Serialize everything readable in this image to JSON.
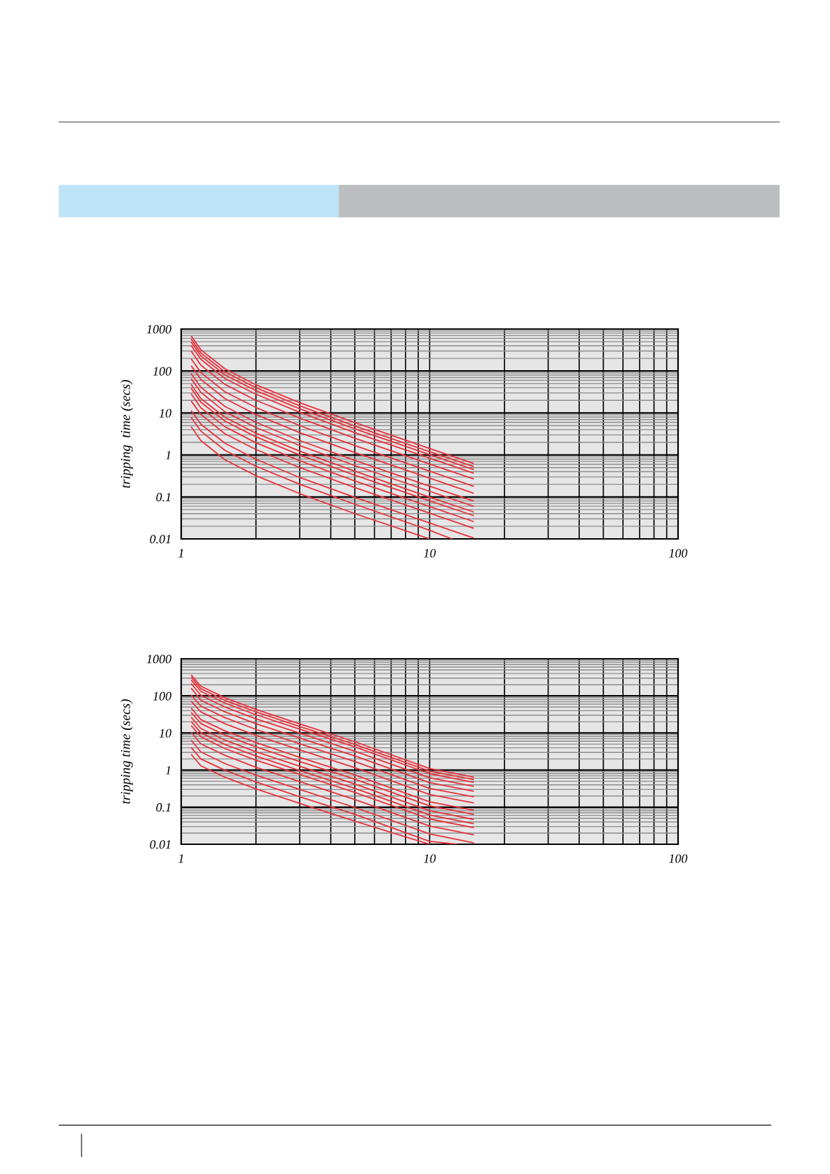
{
  "chart_data": [
    {
      "type": "line",
      "ylabel": "tripping  time (secs)",
      "log": "xy",
      "xlim": [
        1,
        100
      ],
      "ylim": [
        0.01,
        1000
      ],
      "xticks": [
        1,
        10,
        100
      ],
      "yticks": [
        0.01,
        0.1,
        1,
        10,
        100,
        1000
      ],
      "grid": true,
      "color": "#e8313a",
      "series": [
        {
          "x": [
            1.1,
            1.2,
            1.5,
            2,
            3,
            5,
            10,
            15
          ],
          "values": [
            670,
            320,
            113,
            47,
            17.6,
            5.9,
            1.42,
            0.63
          ]
        },
        {
          "x": [
            1.1,
            1.2,
            1.5,
            2,
            3,
            5,
            10,
            15
          ],
          "values": [
            565,
            270,
            95,
            40,
            14.8,
            4.9,
            1.2,
            0.53
          ]
        },
        {
          "x": [
            1.1,
            1.2,
            1.5,
            2,
            3,
            5,
            10,
            15
          ],
          "values": [
            480,
            230,
            81,
            34,
            12.6,
            4.2,
            1.02,
            0.45
          ]
        },
        {
          "x": [
            1.1,
            1.2,
            1.5,
            2,
            3,
            5,
            10,
            15
          ],
          "values": [
            395,
            189,
            66,
            28,
            10.4,
            3.4,
            0.84,
            0.37
          ]
        },
        {
          "x": [
            1.1,
            1.2,
            1.5,
            2,
            3,
            5,
            10,
            15
          ],
          "values": [
            290,
            138,
            48,
            20,
            7.6,
            2.5,
            0.61,
            0.27
          ]
        },
        {
          "x": [
            1.1,
            1.2,
            1.5,
            2,
            3,
            5,
            10,
            15
          ],
          "values": [
            192,
            92,
            32,
            13.5,
            5.0,
            1.67,
            0.41,
            0.18
          ]
        },
        {
          "x": [
            1.1,
            1.2,
            1.5,
            2,
            3,
            5,
            10,
            15
          ],
          "values": [
            131,
            63,
            22,
            9.2,
            3.4,
            1.14,
            0.28,
            0.123
          ]
        },
        {
          "x": [
            1.1,
            1.2,
            1.5,
            2,
            3,
            5,
            10,
            15
          ],
          "values": [
            85,
            41,
            14.3,
            6.0,
            2.2,
            0.74,
            0.18,
            0.08
          ]
        },
        {
          "x": [
            1.1,
            1.2,
            1.5,
            2,
            3,
            5,
            10,
            15
          ],
          "values": [
            64,
            31,
            10.7,
            4.5,
            1.68,
            0.56,
            0.136,
            0.06
          ]
        },
        {
          "x": [
            1.1,
            1.2,
            1.5,
            2,
            3,
            5,
            10,
            15
          ],
          "values": [
            47,
            22,
            7.9,
            3.3,
            1.23,
            0.41,
            0.099,
            0.044
          ]
        },
        {
          "x": [
            1.1,
            1.2,
            1.5,
            2,
            3,
            5,
            10,
            15
          ],
          "values": [
            38,
            18,
            6.4,
            2.7,
            1.0,
            0.33,
            0.081,
            0.036
          ]
        },
        {
          "x": [
            1.1,
            1.2,
            1.5,
            2,
            3,
            5,
            10,
            15
          ],
          "values": [
            28,
            13.3,
            4.7,
            1.95,
            0.73,
            0.24,
            0.059,
            0.026
          ]
        },
        {
          "x": [
            1.1,
            1.2,
            1.5,
            2,
            3,
            5,
            10,
            15
          ],
          "values": [
            19,
            9.2,
            3.2,
            1.35,
            0.5,
            0.167,
            0.041,
            0.018
          ]
        },
        {
          "x": [
            1.1,
            1.2,
            1.5,
            2,
            3,
            5,
            10,
            15
          ],
          "values": [
            11.2,
            5.4,
            1.9,
            0.79,
            0.29,
            0.098,
            0.024,
            0.0105
          ]
        },
        {
          "x": [
            1.1,
            1.2,
            1.5,
            2,
            3,
            5,
            10,
            12.3
          ],
          "values": [
            7.7,
            3.7,
            1.29,
            0.54,
            0.2,
            0.067,
            0.016,
            0.01
          ]
        },
        {
          "x": [
            1.1,
            1.2,
            1.5,
            2,
            3,
            5,
            10
          ],
          "values": [
            4.6,
            2.2,
            0.77,
            0.32,
            0.12,
            0.04,
            0.01
          ]
        }
      ]
    },
    {
      "type": "line",
      "ylabel": "tripping time (secs)",
      "log": "xy",
      "xlim": [
        1,
        100
      ],
      "ylim": [
        0.01,
        1000
      ],
      "xticks": [
        1,
        10,
        100
      ],
      "yticks": [
        0.01,
        0.1,
        1,
        10,
        100,
        1000
      ],
      "grid": true,
      "color": "#e8313a",
      "series": [
        {
          "x": [
            1.1,
            1.2,
            1.5,
            2,
            3,
            5,
            10,
            15
          ],
          "values": [
            360,
            183,
            89,
            43,
            17.6,
            5.8,
            1.1,
            0.65
          ]
        },
        {
          "x": [
            1.1,
            1.2,
            1.5,
            2,
            3,
            5,
            10,
            15
          ],
          "values": [
            311,
            156,
            76,
            37,
            15,
            4.9,
            0.94,
            0.555
          ]
        },
        {
          "x": [
            1.1,
            1.2,
            1.5,
            2,
            3,
            5,
            10,
            15
          ],
          "values": [
            263,
            132,
            64,
            31,
            12.7,
            4.2,
            0.8,
            0.47
          ]
        },
        {
          "x": [
            1.1,
            1.2,
            1.5,
            2,
            3,
            5,
            10,
            15
          ],
          "values": [
            211,
            103,
            50,
            24,
            9.9,
            3.2,
            0.62,
            0.365
          ]
        },
        {
          "x": [
            1.1,
            1.2,
            1.5,
            2,
            3,
            5,
            10,
            15
          ],
          "values": [
            158,
            76,
            37,
            17.8,
            7.3,
            2.4,
            0.46,
            0.27
          ]
        },
        {
          "x": [
            1.1,
            1.2,
            1.5,
            2,
            3,
            5,
            10,
            15
          ],
          "values": [
            103,
            53,
            26,
            12.5,
            5.1,
            1.7,
            0.32,
            0.19
          ]
        },
        {
          "x": [
            1.1,
            1.2,
            1.5,
            2,
            3,
            5,
            10,
            15
          ],
          "values": [
            70,
            37,
            17.8,
            8.6,
            3.5,
            1.16,
            0.22,
            0.13
          ]
        },
        {
          "x": [
            1.1,
            1.2,
            1.5,
            2,
            3,
            5,
            10,
            15
          ],
          "values": [
            46,
            23,
            11.4,
            5.5,
            2.2,
            0.74,
            0.14,
            0.083
          ]
        },
        {
          "x": [
            1.1,
            1.2,
            1.5,
            2,
            3,
            5,
            10,
            15
          ],
          "values": [
            35,
            18,
            8.8,
            4.2,
            1.7,
            0.57,
            0.109,
            0.064
          ]
        },
        {
          "x": [
            1.1,
            1.2,
            1.5,
            2,
            3,
            5,
            10,
            15
          ],
          "values": [
            26,
            13.2,
            6.4,
            3.1,
            1.27,
            0.42,
            0.08,
            0.047
          ]
        },
        {
          "x": [
            1.1,
            1.2,
            1.5,
            2,
            3,
            5,
            10,
            15
          ],
          "values": [
            20,
            10.1,
            4.9,
            2.4,
            0.97,
            0.32,
            0.061,
            0.036
          ]
        },
        {
          "x": [
            1.1,
            1.2,
            1.5,
            2,
            3,
            5,
            10,
            15
          ],
          "values": [
            15.5,
            7.9,
            3.8,
            1.85,
            0.76,
            0.25,
            0.048,
            0.028
          ]
        },
        {
          "x": [
            1.1,
            1.2,
            1.5,
            2,
            3,
            5,
            10,
            15
          ],
          "values": [
            10.3,
            5.1,
            2.5,
            1.19,
            0.49,
            0.16,
            0.031,
            0.018
          ]
        },
        {
          "x": [
            1.1,
            1.2,
            1.5,
            2,
            3,
            5,
            10,
            15
          ],
          "values": [
            6.2,
            3.1,
            1.5,
            0.73,
            0.3,
            0.098,
            0.019,
            0.011
          ]
        },
        {
          "x": [
            1.1,
            1.2,
            1.5,
            2,
            3,
            5,
            10,
            12.8
          ],
          "values": [
            4.0,
            2.0,
            0.99,
            0.48,
            0.19,
            0.064,
            0.012,
            0.01
          ]
        },
        {
          "x": [
            1.1,
            1.2,
            1.5,
            2,
            3,
            5,
            10
          ],
          "values": [
            2.6,
            1.3,
            0.64,
            0.31,
            0.126,
            0.042,
            0.01
          ]
        }
      ]
    }
  ]
}
